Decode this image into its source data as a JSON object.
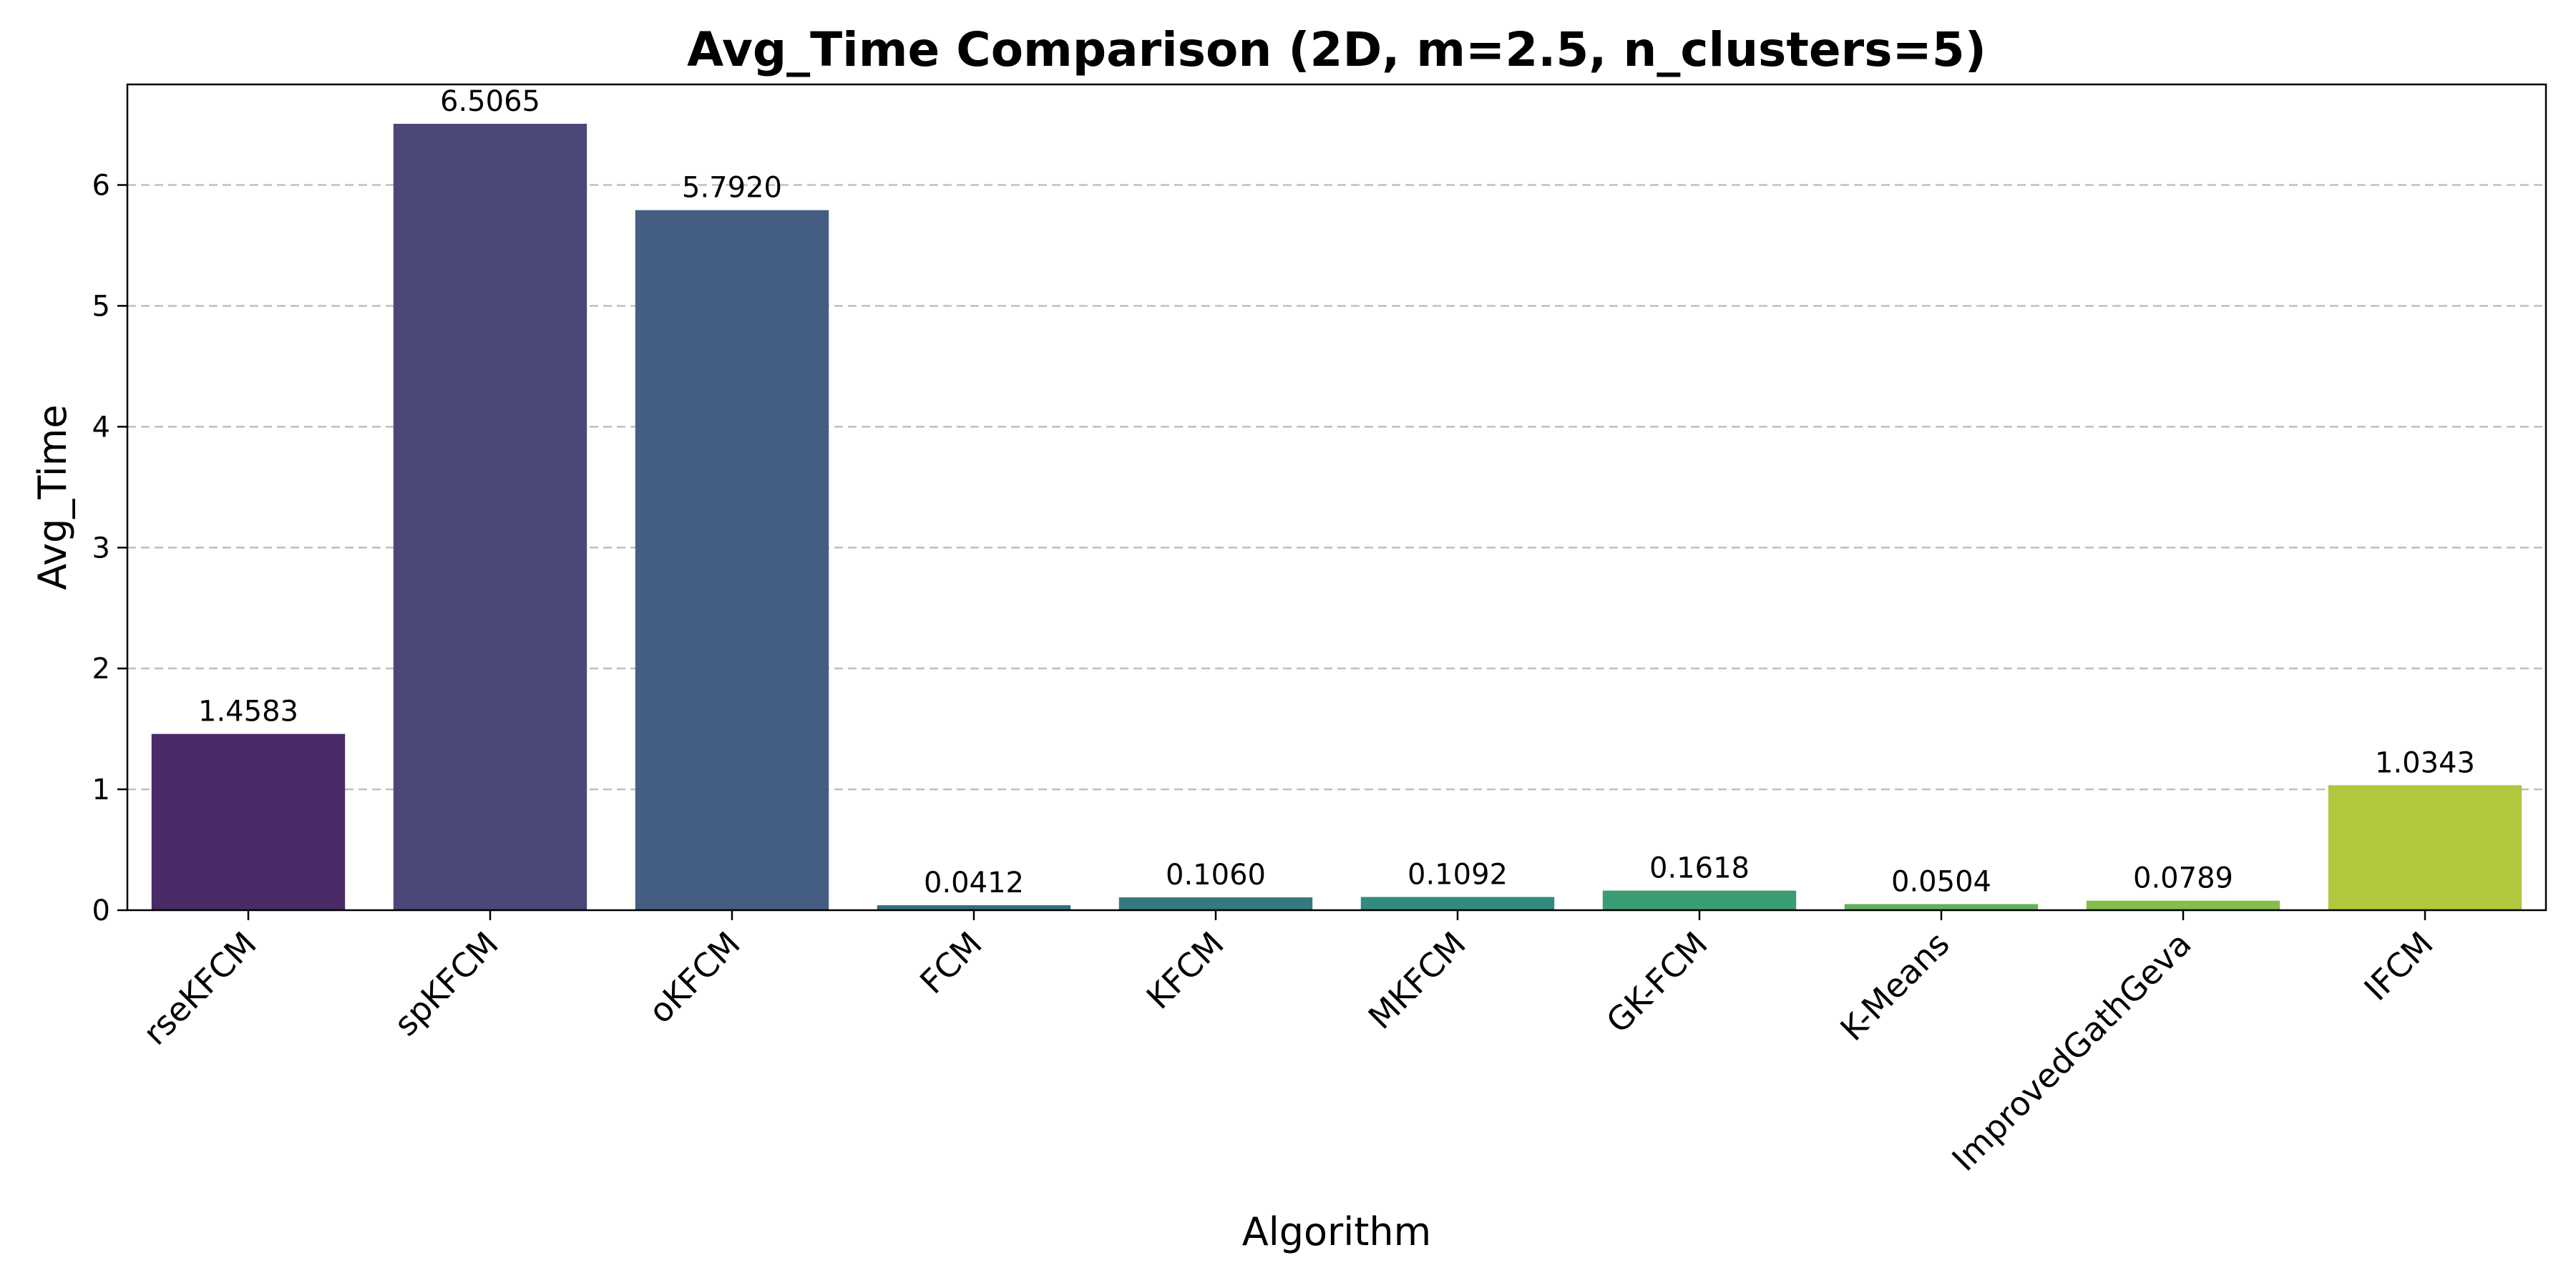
{
  "chart_data": {
    "type": "bar",
    "title": "Avg_Time Comparison (2D, m=2.5, n_clusters=5)",
    "xlabel": "Algorithm",
    "ylabel": "Avg_Time",
    "categories": [
      "rseKFCM",
      "spKFCM",
      "oKFCM",
      "FCM",
      "KFCM",
      "MKFCM",
      "GK-FCM",
      "K-Means",
      "ImprovedGathGeva",
      "IFCM"
    ],
    "values": [
      1.4583,
      6.5065,
      5.792,
      0.0412,
      0.106,
      0.1092,
      0.1618,
      0.0504,
      0.0789,
      1.0343
    ],
    "value_labels": [
      "1.4583",
      "6.5065",
      "5.7920",
      "0.0412",
      "0.1060",
      "0.1092",
      "0.1618",
      "0.0504",
      "0.0789",
      "1.0343"
    ],
    "colors": [
      "#4a2a66",
      "#4b4779",
      "#445d82",
      "#3a6c7e",
      "#35797e",
      "#338b7f",
      "#3a9c72",
      "#63b15c",
      "#86bd4c",
      "#b1c73d"
    ],
    "ylim": [
      0,
      6.832
    ],
    "yticks": [
      0,
      1,
      2,
      3,
      4,
      5,
      6
    ],
    "ytick_labels": [
      "0",
      "1",
      "2",
      "3",
      "4",
      "5",
      "6"
    ],
    "grid": "y-dashed",
    "legend": "none"
  }
}
